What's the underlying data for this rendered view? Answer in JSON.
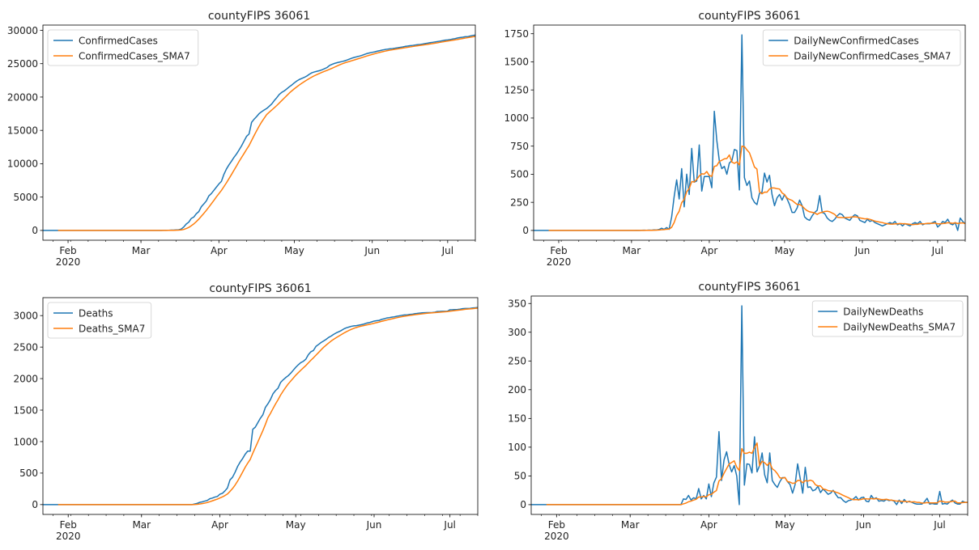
{
  "chart_data": [
    {
      "type": "line",
      "title": "countyFIPS 36061",
      "x": {
        "start": "2020-01-22",
        "periods": 173,
        "freq": "D"
      },
      "xticks": [
        {
          "date": "2020-02-01",
          "label": "Feb"
        },
        {
          "date": "2020-03-01",
          "label": "Mar"
        },
        {
          "date": "2020-04-01",
          "label": "Apr"
        },
        {
          "date": "2020-05-01",
          "label": "May"
        },
        {
          "date": "2020-06-01",
          "label": "Jun"
        },
        {
          "date": "2020-07-01",
          "label": "Jul"
        }
      ],
      "xtick_year": "2020",
      "yticks": [
        0,
        5000,
        10000,
        15000,
        20000,
        25000,
        30000
      ],
      "ylim": [
        -1466,
        30786
      ],
      "legend": "upper-left",
      "series": [
        {
          "name": "ConfirmedCases",
          "color": "#1f77b4",
          "derive": {
            "op": "cumsum",
            "of": "DailyNewConfirmedCases"
          }
        },
        {
          "name": "ConfirmedCases_SMA7",
          "color": "#ff7f0e",
          "derive": {
            "op": "rolling_mean",
            "window": 7,
            "of": "ConfirmedCases"
          }
        }
      ]
    },
    {
      "type": "line",
      "title": "countyFIPS 36061",
      "x": {
        "start": "2020-01-22",
        "periods": 173,
        "freq": "D"
      },
      "xticks": [
        {
          "date": "2020-02-01",
          "label": "Feb"
        },
        {
          "date": "2020-03-01",
          "label": "Mar"
        },
        {
          "date": "2020-04-01",
          "label": "Apr"
        },
        {
          "date": "2020-05-01",
          "label": "May"
        },
        {
          "date": "2020-06-01",
          "label": "Jun"
        },
        {
          "date": "2020-07-01",
          "label": "Jul"
        }
      ],
      "xtick_year": "2020",
      "yticks": [
        0,
        250,
        500,
        750,
        1000,
        1250,
        1500,
        1750
      ],
      "ylim": [
        -87,
        1827
      ],
      "legend": "upper-right",
      "series": [
        {
          "name": "DailyNewConfirmedCases",
          "color": "#1f77b4",
          "values": [
            0,
            0,
            0,
            0,
            0,
            0,
            0,
            0,
            0,
            0,
            0,
            0,
            0,
            0,
            0,
            0,
            0,
            0,
            0,
            0,
            0,
            0,
            0,
            0,
            0,
            0,
            0,
            0,
            0,
            0,
            0,
            0,
            0,
            0,
            0,
            0,
            0,
            0,
            0,
            0,
            0,
            1,
            0,
            1,
            2,
            1,
            3,
            2,
            5,
            4,
            8,
            20,
            10,
            25,
            10,
            120,
            300,
            450,
            280,
            550,
            210,
            500,
            320,
            730,
            430,
            440,
            760,
            350,
            480,
            480,
            480,
            380,
            1060,
            800,
            620,
            550,
            570,
            500,
            600,
            620,
            720,
            710,
            360,
            1740,
            470,
            400,
            440,
            290,
            250,
            230,
            330,
            340,
            510,
            430,
            490,
            320,
            220,
            290,
            320,
            270,
            320,
            280,
            230,
            160,
            160,
            200,
            270,
            220,
            120,
            100,
            90,
            130,
            160,
            180,
            310,
            160,
            150,
            110,
            90,
            80,
            100,
            130,
            150,
            140,
            110,
            100,
            90,
            120,
            140,
            130,
            90,
            80,
            70,
            100,
            80,
            90,
            70,
            60,
            50,
            40,
            50,
            60,
            70,
            60,
            80,
            50,
            60,
            40,
            60,
            50,
            40,
            60,
            70,
            60,
            80,
            50,
            60,
            60,
            60,
            70,
            80,
            30,
            50,
            80,
            70,
            100,
            60,
            50,
            70,
            0,
            110,
            80,
            60
          ]
        },
        {
          "name": "DailyNewConfirmedCases_SMA7",
          "color": "#ff7f0e",
          "derive": {
            "op": "rolling_mean",
            "window": 7,
            "of": "DailyNewConfirmedCases"
          }
        }
      ]
    },
    {
      "type": "line",
      "title": "countyFIPS 36061",
      "x": {
        "start": "2020-01-22",
        "periods": 173,
        "freq": "D"
      },
      "xticks": [
        {
          "date": "2020-02-01",
          "label": "Feb"
        },
        {
          "date": "2020-03-01",
          "label": "Mar"
        },
        {
          "date": "2020-04-01",
          "label": "Apr"
        },
        {
          "date": "2020-05-01",
          "label": "May"
        },
        {
          "date": "2020-06-01",
          "label": "Jun"
        },
        {
          "date": "2020-07-01",
          "label": "Jul"
        }
      ],
      "xtick_year": "2020",
      "yticks": [
        0,
        500,
        1000,
        1500,
        2000,
        2500,
        3000
      ],
      "ylim": [
        -156,
        3285
      ],
      "legend": "upper-left",
      "series": [
        {
          "name": "Deaths",
          "color": "#1f77b4",
          "derive": {
            "op": "cumsum",
            "of": "DailyNewDeaths"
          }
        },
        {
          "name": "Deaths_SMA7",
          "color": "#ff7f0e",
          "derive": {
            "op": "rolling_mean",
            "window": 7,
            "of": "Deaths"
          }
        }
      ]
    },
    {
      "type": "line",
      "title": "countyFIPS 36061",
      "x": {
        "start": "2020-01-22",
        "periods": 173,
        "freq": "D"
      },
      "xticks": [
        {
          "date": "2020-02-01",
          "label": "Feb"
        },
        {
          "date": "2020-03-01",
          "label": "Mar"
        },
        {
          "date": "2020-04-01",
          "label": "Apr"
        },
        {
          "date": "2020-05-01",
          "label": "May"
        },
        {
          "date": "2020-06-01",
          "label": "Jun"
        },
        {
          "date": "2020-07-01",
          "label": "Jul"
        }
      ],
      "xtick_year": "2020",
      "yticks": [
        0,
        50,
        100,
        150,
        200,
        250,
        300,
        350
      ],
      "ylim": [
        -17,
        363
      ],
      "legend": "upper-right",
      "series": [
        {
          "name": "DailyNewDeaths",
          "color": "#1f77b4",
          "values": [
            0,
            0,
            0,
            0,
            0,
            0,
            0,
            0,
            0,
            0,
            0,
            0,
            0,
            0,
            0,
            0,
            0,
            0,
            0,
            0,
            0,
            0,
            0,
            0,
            0,
            0,
            0,
            0,
            0,
            0,
            0,
            0,
            0,
            0,
            0,
            0,
            0,
            0,
            0,
            0,
            0,
            0,
            0,
            0,
            0,
            0,
            0,
            0,
            0,
            0,
            0,
            0,
            0,
            0,
            0,
            0,
            0,
            0,
            0,
            0,
            10,
            9,
            16,
            8,
            12,
            10,
            28,
            10,
            16,
            10,
            36,
            14,
            38,
            48,
            127,
            42,
            78,
            92,
            70,
            57,
            68,
            50,
            0,
            346,
            34,
            71,
            70,
            55,
            118,
            57,
            68,
            90,
            52,
            38,
            90,
            42,
            35,
            30,
            40,
            47,
            47,
            40,
            35,
            20,
            35,
            71,
            46,
            20,
            65,
            30,
            31,
            24,
            26,
            32,
            21,
            27,
            23,
            18,
            20,
            25,
            18,
            12,
            12,
            7,
            4,
            7,
            8,
            10,
            14,
            8,
            12,
            13,
            6,
            5,
            16,
            10,
            12,
            6,
            7,
            6,
            9,
            7,
            8,
            6,
            0,
            8,
            2,
            9,
            4,
            6,
            4,
            2,
            1,
            1,
            1,
            5,
            11,
            1,
            2,
            1,
            1,
            23,
            1,
            2,
            1,
            5,
            8,
            3,
            1,
            1,
            6,
            4,
            4
          ]
        },
        {
          "name": "DailyNewDeaths_SMA7",
          "color": "#ff7f0e",
          "derive": {
            "op": "rolling_mean",
            "window": 7,
            "of": "DailyNewDeaths"
          }
        }
      ]
    }
  ]
}
